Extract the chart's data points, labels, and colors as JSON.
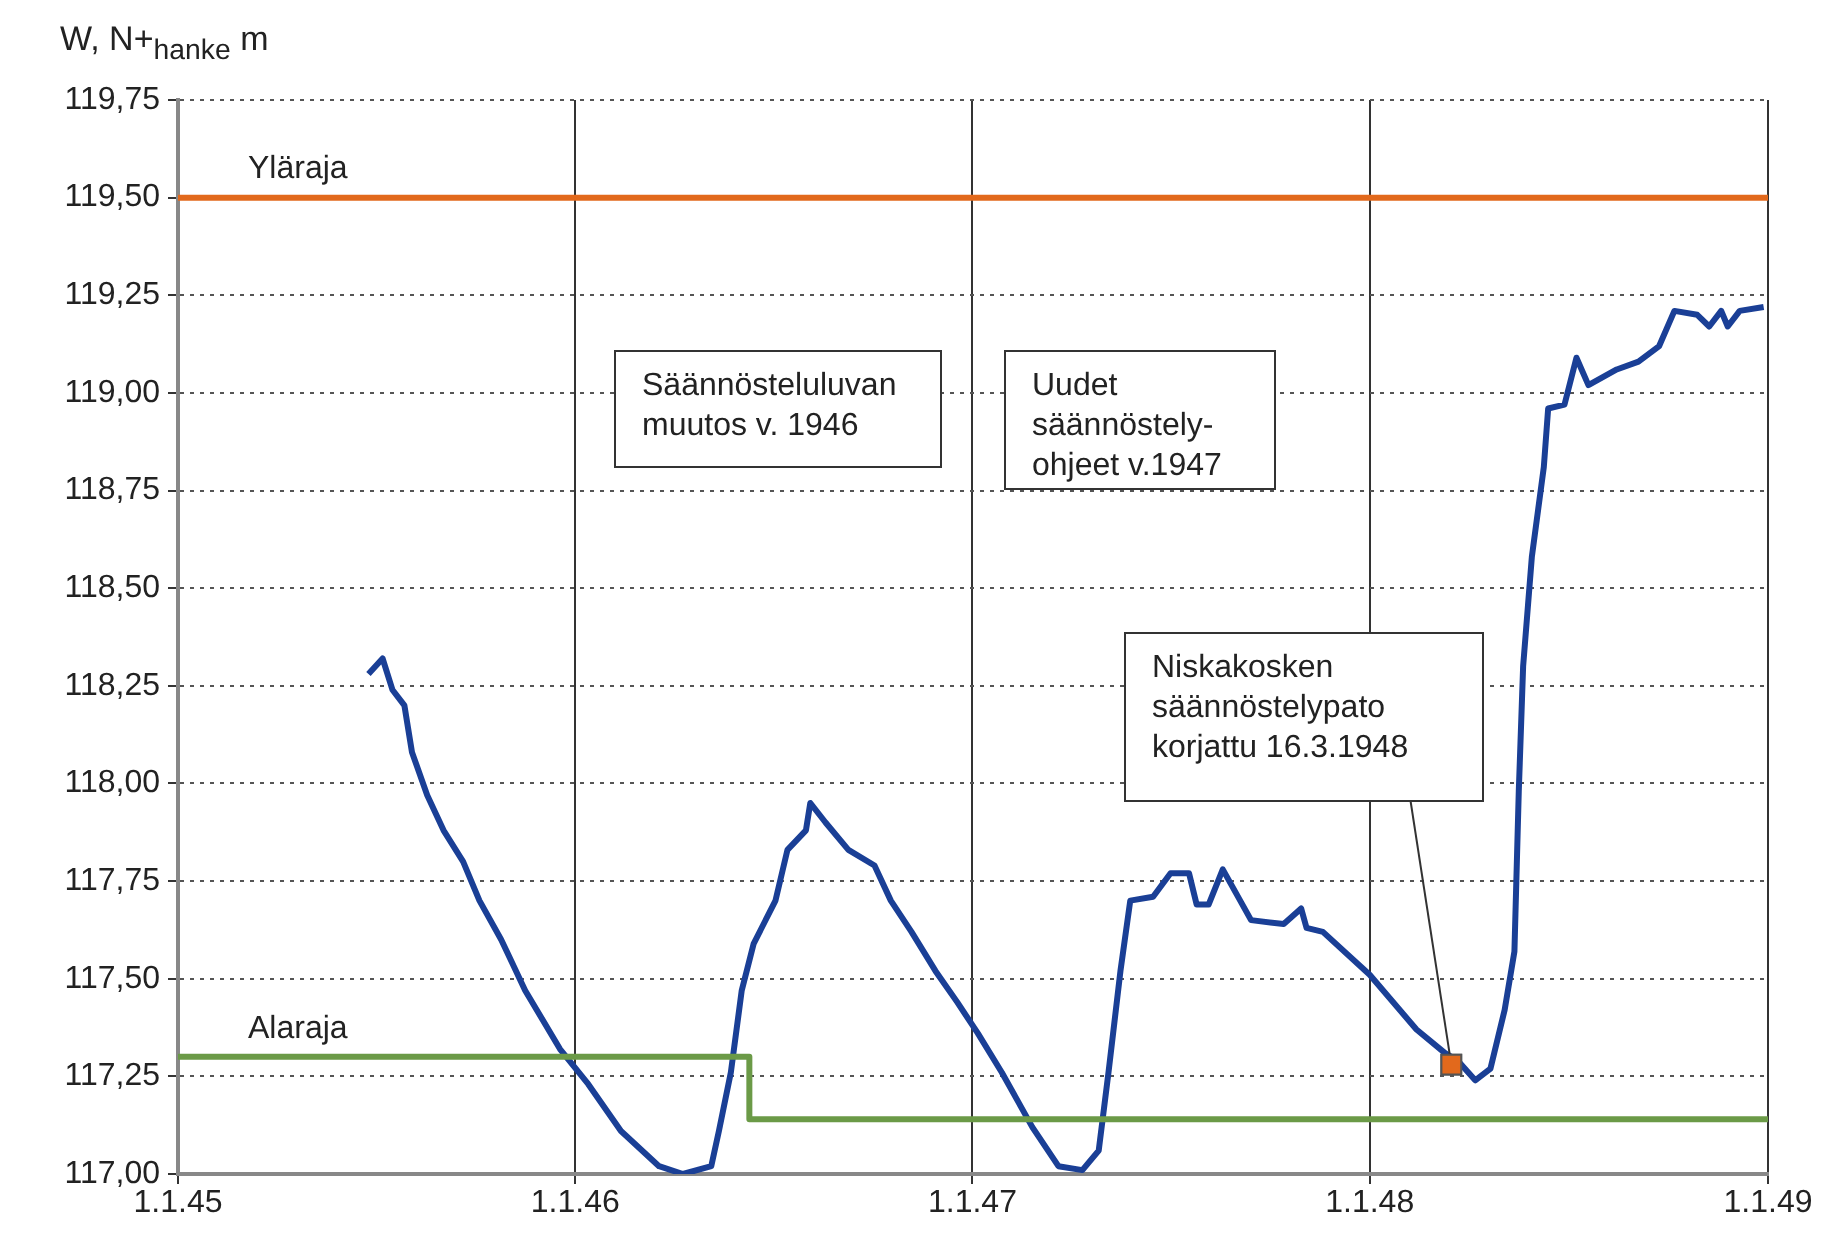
{
  "chart_data": {
    "type": "line",
    "ylabel": "W, N+$_{hanke}$ m",
    "xlim": [
      "1945-01-01",
      "1949-01-01"
    ],
    "xticks": [
      {
        "value": "1945-01-01",
        "label": "1.1.45"
      },
      {
        "value": "1946-01-01",
        "label": "1.1.46"
      },
      {
        "value": "1947-01-01",
        "label": "1.1.47"
      },
      {
        "value": "1948-01-01",
        "label": "1.1.48"
      },
      {
        "value": "1949-01-01",
        "label": "1.1.49"
      }
    ],
    "ylim": [
      117,
      119.75
    ],
    "yticks": [
      {
        "value": 117,
        "label": "117,00"
      },
      {
        "value": 117.25,
        "label": "117,25"
      },
      {
        "value": 117.5,
        "label": "117,50"
      },
      {
        "value": 117.75,
        "label": "117,75"
      },
      {
        "value": 118,
        "label": "118,00"
      },
      {
        "value": 118.25,
        "label": "118,25"
      },
      {
        "value": 118.5,
        "label": "118,50"
      },
      {
        "value": 118.75,
        "label": "118,75"
      },
      {
        "value": 119,
        "label": "119,00"
      },
      {
        "value": 119.25,
        "label": "119,25"
      },
      {
        "value": 119.5,
        "label": "119,50"
      },
      {
        "value": 119.75,
        "label": "119,75"
      }
    ],
    "grid": true,
    "legend": false,
    "marker": "none",
    "line_style": "solid",
    "series": [
      {
        "name": "Yläraja",
        "color": "#e2691c",
        "x": [
          "1945-01-01",
          "1949-01-01"
        ],
        "values": [
          119.5,
          119.5
        ]
      },
      {
        "name": "Alaraja",
        "type": "step",
        "color": "#6b9a47",
        "x": [
          "1945-01-01",
          "1946-06-10",
          "1949-01-01"
        ],
        "values": [
          117.3,
          117.14,
          117.14
        ]
      },
      {
        "color": "#1a3f96",
        "x": [
          "1945-06-25",
          "1945-07-08",
          "1945-07-17",
          "1945-07-28",
          "1945-08-04",
          "1945-08-18",
          "1945-09-02",
          "1945-09-20",
          "1945-10-05",
          "1945-10-25",
          "1945-11-16",
          "1945-12-18",
          "1946-01-13",
          "1946-02-12",
          "1946-03-19",
          "1946-04-10",
          "1946-05-06",
          "1946-05-13",
          "1946-05-24",
          "1946-06-03",
          "1946-06-14",
          "1946-07-04",
          "1946-07-15",
          "1946-08-01",
          "1946-08-05",
          "1946-08-19",
          "1946-09-09",
          "1946-10-03",
          "1946-10-18",
          "1946-11-06",
          "1946-11-28",
          "1946-12-18",
          "1947-01-06",
          "1947-01-28",
          "1947-02-25",
          "1947-03-21",
          "1947-04-12",
          "1947-04-27",
          "1947-05-06",
          "1947-05-17",
          "1947-05-26",
          "1947-06-16",
          "1947-07-02",
          "1947-07-19",
          "1947-07-26",
          "1947-08-06",
          "1947-08-19",
          "1947-09-14",
          "1947-10-14",
          "1947-10-30",
          "1947-11-04",
          "1947-11-19",
          "1948-01-01",
          "1948-02-13",
          "1948-03-10",
          "1948-03-22",
          "1948-04-07",
          "1948-04-21",
          "1948-05-04",
          "1948-05-13",
          "1948-05-17",
          "1948-05-21",
          "1948-05-29",
          "1948-06-09",
          "1948-06-13",
          "1948-06-28",
          "1948-07-09",
          "1948-07-20",
          "1948-08-15",
          "1948-09-04",
          "1948-09-23",
          "1948-10-07",
          "1948-10-28",
          "1948-11-08",
          "1948-11-19",
          "1948-11-25",
          "1948-12-06",
          "1948-12-28"
        ],
        "values": [
          118.28,
          118.32,
          118.24,
          118.2,
          118.08,
          117.97,
          117.88,
          117.8,
          117.7,
          117.6,
          117.47,
          117.32,
          117.23,
          117.11,
          117.02,
          117.0,
          117.02,
          117.11,
          117.26,
          117.47,
          117.59,
          117.7,
          117.83,
          117.88,
          117.95,
          117.9,
          117.83,
          117.79,
          117.7,
          117.62,
          117.52,
          117.44,
          117.36,
          117.26,
          117.12,
          117.02,
          117.01,
          117.06,
          117.26,
          117.52,
          117.7,
          117.71,
          117.77,
          117.77,
          117.69,
          117.69,
          117.78,
          117.65,
          117.64,
          117.68,
          117.63,
          117.62,
          117.51,
          117.37,
          117.31,
          117.29,
          117.24,
          117.27,
          117.42,
          117.57,
          117.98,
          118.3,
          118.58,
          118.81,
          118.96,
          118.97,
          119.09,
          119.02,
          119.06,
          119.08,
          119.12,
          119.21,
          119.2,
          119.17,
          119.21,
          119.17,
          119.21,
          119.22
        ]
      },
      {
        "type": "scatter",
        "marker": "square",
        "color": "#e2691c",
        "x": [
          "1948-03-16"
        ],
        "values": [
          117.28
        ]
      }
    ],
    "annotations": [
      "Säännösteluluvan muutos v. 1946",
      "Uudet säännöstely-ohjeet v.1947",
      {
        "text": "Niskakosken säännöstelypato korjattu 16.3.1948",
        "x": "1948-03-16",
        "y": 117.28
      }
    ]
  }
}
